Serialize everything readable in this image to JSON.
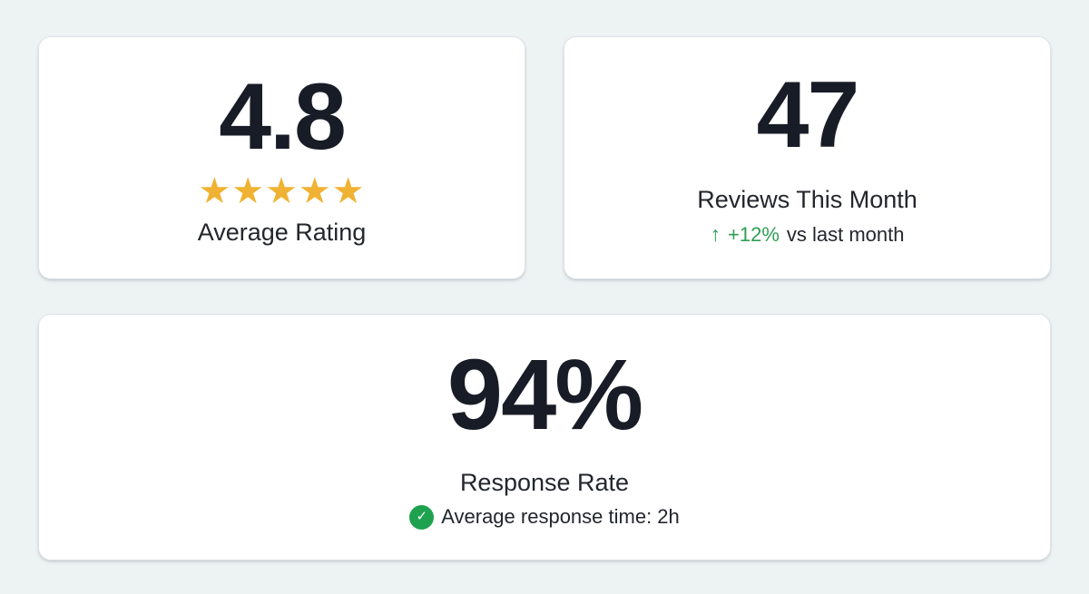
{
  "colors": {
    "page_background": "#edf2f3",
    "card_background": "#ffffff",
    "number_text": "#181c27",
    "star_gold": "#f0b232",
    "trend_green": "#2e9e54",
    "check_badge_green": "#1ea24f"
  },
  "cards": {
    "average_rating": {
      "value": "4.8",
      "stars": [
        "★",
        "★",
        "★",
        "★",
        "★"
      ],
      "label": "Average Rating"
    },
    "reviews": {
      "value": "47",
      "label": "Reviews This Month",
      "trend_arrow": "↑",
      "trend_value": "+12%",
      "trend_suffix": "vs last month"
    },
    "response_rate": {
      "value": "94%",
      "label": "Response Rate",
      "check_icon": "✓",
      "subtext": "Average response time: 2h"
    }
  }
}
